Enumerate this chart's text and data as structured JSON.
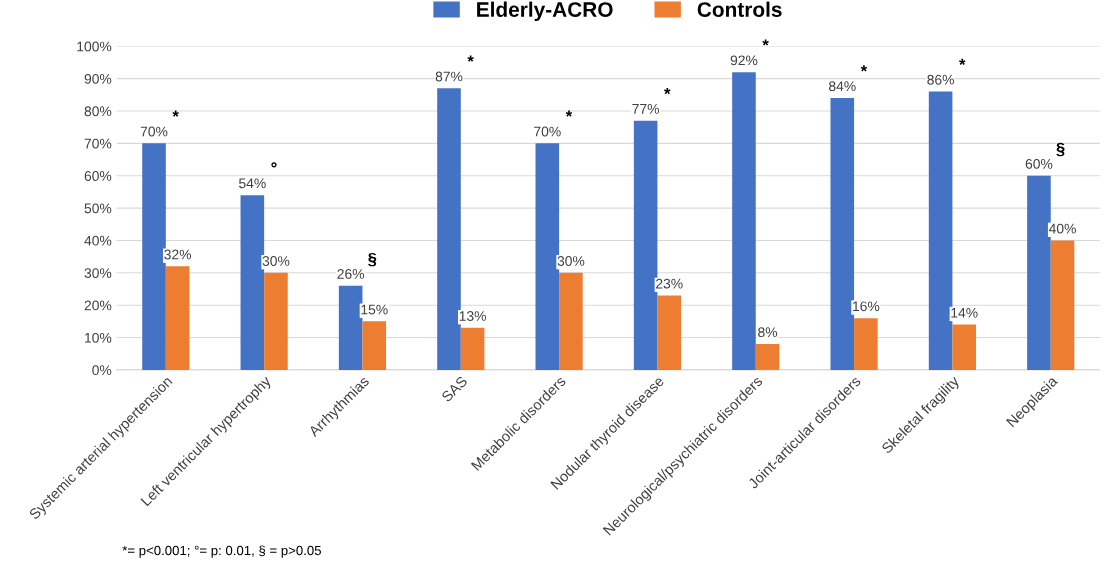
{
  "chart_data": {
    "type": "bar",
    "categories": [
      "Systemic arterial hypertension",
      "Left ventricular hypertrophy",
      "Arrhythmias",
      "SAS",
      "Metabolic disorders",
      "Nodular thyroid disease",
      "Neurological/psychiatric disorders",
      "Joint-articular disorders",
      "Skeletal fragility",
      "Neoplasia"
    ],
    "series": [
      {
        "name": "Elderly-ACRO",
        "color": "#4472c4",
        "values": [
          70,
          54,
          26,
          87,
          70,
          77,
          92,
          84,
          86,
          60
        ],
        "value_labels": [
          "70%",
          "54%",
          "26%",
          "87%",
          "70%",
          "77%",
          "92%",
          "84%",
          "86%",
          "60%"
        ]
      },
      {
        "name": "Controls",
        "color": "#ed7d31",
        "values": [
          32,
          30,
          15,
          13,
          30,
          23,
          8,
          16,
          14,
          40
        ],
        "value_labels": [
          "32%",
          "30%",
          "15%",
          "13%",
          "30%",
          "23%",
          "8%",
          "16%",
          "14%",
          "40%"
        ]
      }
    ],
    "ylim": [
      0,
      100
    ],
    "yticks": [
      {
        "value": 0,
        "label": "0%"
      },
      {
        "value": 10,
        "label": "10%"
      },
      {
        "value": 20,
        "label": "20%"
      },
      {
        "value": 30,
        "label": "30%"
      },
      {
        "value": 40,
        "label": "40%"
      },
      {
        "value": 50,
        "label": "50%"
      },
      {
        "value": 60,
        "label": "60%"
      },
      {
        "value": 70,
        "label": "70%"
      },
      {
        "value": 80,
        "label": "80%"
      },
      {
        "value": 90,
        "label": "90%"
      },
      {
        "value": 100,
        "label": "100%"
      }
    ],
    "grid": "y",
    "legend": "top",
    "annotations": [
      "*",
      "°",
      "§",
      "*",
      "*",
      "*",
      "*",
      "*",
      "*",
      "§",
      "*= p<0.001; °= p: 0.01, § = p>0.05"
    ]
  }
}
